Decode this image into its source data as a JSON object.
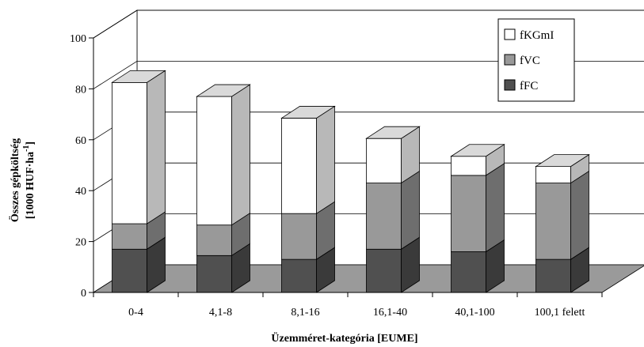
{
  "chart_data": {
    "type": "bar",
    "stacked": true,
    "three_d": true,
    "categories": [
      "0-4",
      "4,1-8",
      "8,1-16",
      "16,1-40",
      "40,1-100",
      "100,1 felett"
    ],
    "series": [
      {
        "name": "fFC",
        "values": [
          17,
          14.5,
          13,
          17,
          16,
          13
        ],
        "color": "#505050"
      },
      {
        "name": "fVC",
        "values": [
          10,
          12,
          18,
          26,
          30,
          30
        ],
        "color": "#999999"
      },
      {
        "name": "fKGmI",
        "values": [
          55.5,
          50.5,
          37.5,
          17.5,
          7.5,
          6.5
        ],
        "color": "#ffffff"
      }
    ],
    "ylabel_line1": "Összes gépköltség",
    "ylabel_line2_main": "[1000 HUF·ha",
    "ylabel_line2_sup": "-1",
    "ylabel_line2_end": "]",
    "xlabel": "Üzemméret-kategória [EUME]",
    "ylim": [
      0,
      100
    ],
    "yticks": [
      "0",
      "20",
      "40",
      "60",
      "80",
      "100"
    ],
    "legend_position": "top-right",
    "grid": true
  }
}
